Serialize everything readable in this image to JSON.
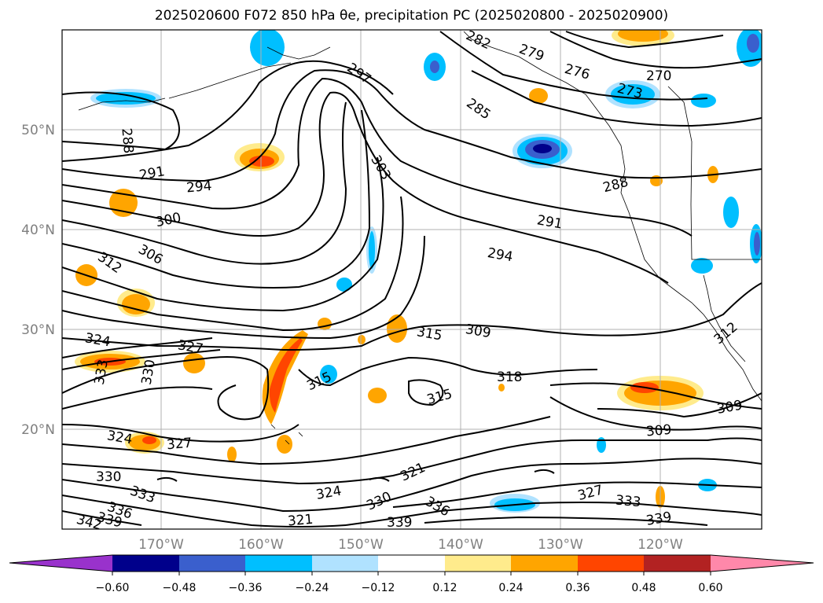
{
  "title": "2025020600 F072 850 hPa θe, precipitation PC (2025020800 - 2025020900)",
  "axes": {
    "lat_labels": [
      "50°N",
      "40°N",
      "30°N",
      "20°N"
    ],
    "lon_labels": [
      "170°W",
      "160°W",
      "150°W",
      "140°W",
      "130°W",
      "120°W"
    ],
    "label_color": "#808080"
  },
  "contour_labels": [
    "297",
    "282",
    "279",
    "276",
    "273",
    "270",
    "285",
    "288",
    "288",
    "291",
    "294",
    "300",
    "306",
    "312",
    "303",
    "291",
    "294",
    "324",
    "327",
    "333",
    "330",
    "315",
    "315",
    "309",
    "318",
    "315",
    "324",
    "327",
    "330",
    "333",
    "336",
    "339",
    "342",
    "321",
    "330",
    "336",
    "339",
    "324",
    "321",
    "327",
    "333",
    "339",
    "309",
    "309",
    "312"
  ],
  "colorbar": {
    "ticks": [
      "−0.60",
      "−0.48",
      "−0.36",
      "−0.24",
      "−0.12",
      "0.12",
      "0.24",
      "0.36",
      "0.48",
      "0.60"
    ],
    "colors": [
      "#9932cc",
      "#00008b",
      "#3a5fcd",
      "#00bfff",
      "#b0e2ff",
      "#ffffff",
      "#ffeb8c",
      "#ffa500",
      "#ff4500",
      "#b22222",
      "#ff88aa"
    ]
  }
}
